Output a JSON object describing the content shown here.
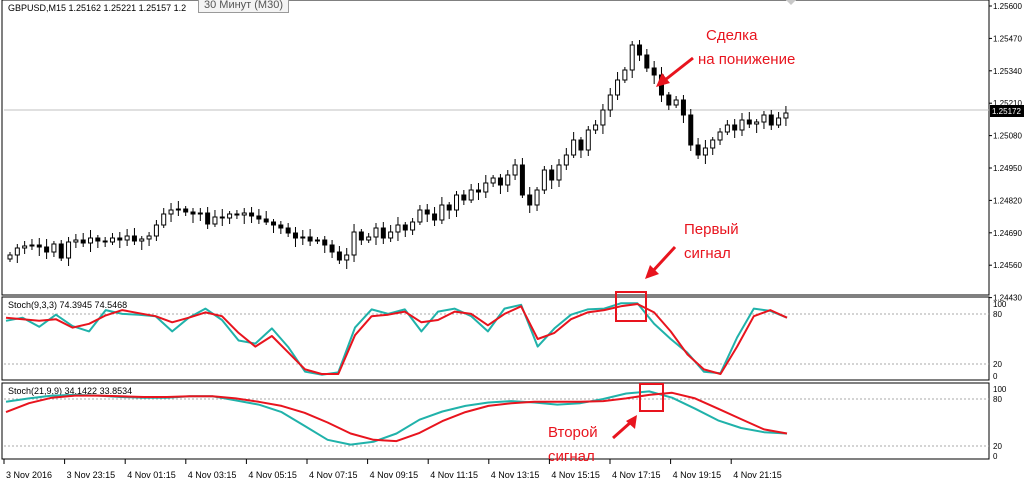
{
  "main_panel": {
    "symbol_info": "GBPUSD,M15  1.25162 1.25221 1.25157 1.2",
    "tooltip": "30 Минут (M30)",
    "price_labels": [
      "1.25600",
      "1.25470",
      "1.25340",
      "1.25210",
      "1.25080",
      "1.24950",
      "1.24820",
      "1.24690",
      "1.24560",
      "1.24430"
    ],
    "current_price": "1.25172",
    "annotation_sell": [
      "Сделка",
      "на понижение"
    ],
    "annotation_first": [
      "Первый",
      "сигнал"
    ]
  },
  "stoch1": {
    "label": "Stoch(9,3,3) 74.3945 74.5468",
    "levels": [
      "100",
      "80",
      "20",
      "0"
    ],
    "main_values": [
      74,
      78,
      66,
      82,
      67,
      60,
      88,
      83,
      82,
      80,
      60,
      78,
      90,
      75,
      48,
      44,
      64,
      39,
      7,
      3,
      6,
      65,
      89,
      83,
      89,
      60,
      86,
      90,
      80,
      60,
      90,
      95,
      40,
      64,
      82,
      89,
      90,
      97,
      97,
      70,
      50,
      32,
      7,
      5,
      52,
      90,
      87,
      78
    ],
    "signal_values": [
      78,
      76,
      74,
      76,
      65,
      70,
      81,
      88,
      84,
      80,
      72,
      78,
      85,
      80,
      58,
      40,
      54,
      32,
      10,
      4,
      4,
      55,
      80,
      82,
      86,
      72,
      75,
      86,
      83,
      68,
      83,
      93,
      50,
      58,
      76,
      85,
      88,
      93,
      96,
      85,
      60,
      30,
      10,
      4,
      40,
      80,
      88,
      78
    ]
  },
  "stoch2": {
    "label": "Stoch(21,9,9) 34.1422 33.8534",
    "levels": [
      "100",
      "80",
      "20",
      "0"
    ],
    "main_values": [
      80,
      85,
      89,
      90,
      89,
      87,
      86,
      86,
      88,
      88,
      82,
      76,
      65,
      45,
      25,
      18,
      22,
      34,
      54,
      66,
      74,
      79,
      81,
      79,
      76,
      78,
      84,
      92,
      95,
      86,
      70,
      53,
      42,
      36,
      34
    ],
    "signal_values": [
      65,
      78,
      86,
      89,
      89,
      88,
      87,
      87,
      88,
      88,
      85,
      80,
      74,
      64,
      50,
      34,
      25,
      23,
      35,
      52,
      65,
      74,
      78,
      80,
      80,
      80,
      81,
      85,
      90,
      93,
      85,
      70,
      55,
      40,
      34
    ]
  },
  "second_signal": [
    "Второй",
    "сигнал"
  ],
  "time_labels": [
    "3 Nov 2016",
    "3 Nov 23:15",
    "4 Nov 01:15",
    "4 Nov 03:15",
    "4 Nov 05:15",
    "4 Nov 07:15",
    "4 Nov 09:15",
    "4 Nov 11:15",
    "4 Nov 13:15",
    "4 Nov 15:15",
    "4 Nov 17:15",
    "4 Nov 19:15",
    "4 Nov 21:15"
  ],
  "colors": {
    "stoch_main": "#20b2aa",
    "stoch_signal": "#e8141e",
    "annotation": "#e8141e",
    "candle": "#000000"
  }
}
